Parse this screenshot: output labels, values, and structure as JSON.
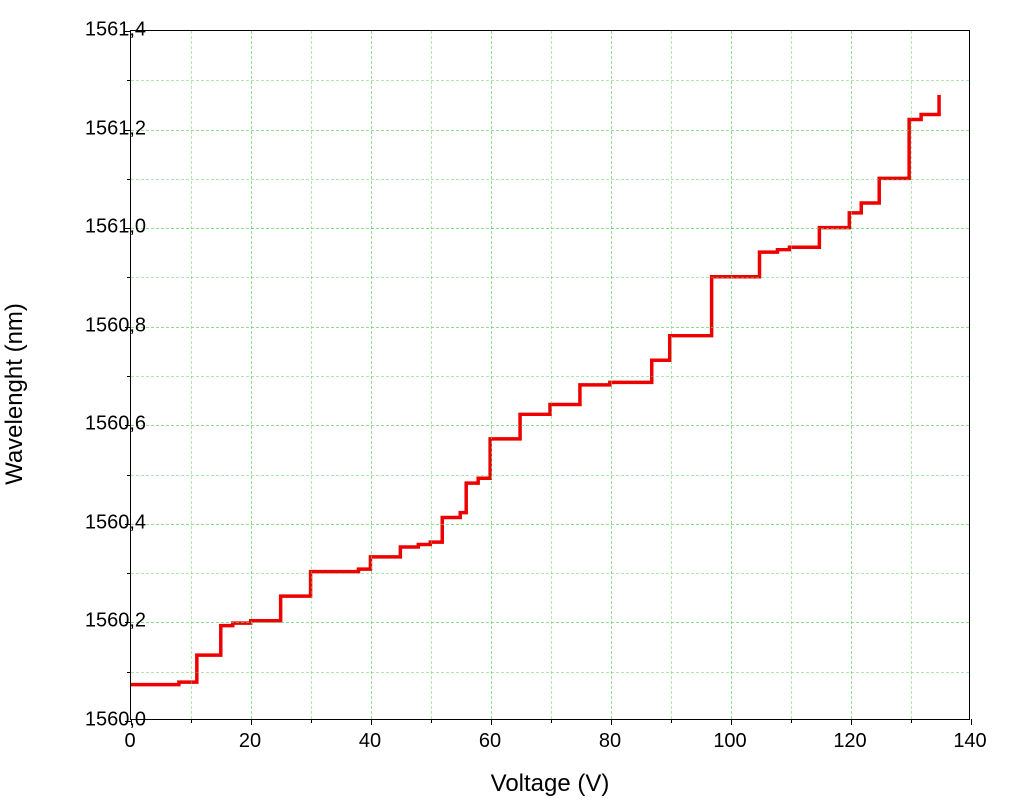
{
  "chart": {
    "type": "line",
    "xlabel": "Voltage (V)",
    "ylabel": "Wavelenght (nm)",
    "label_fontsize": 24,
    "tick_fontsize": 20,
    "background_color": "#ffffff",
    "border_color": "#000000",
    "grid_color": "#66cc66",
    "grid_dash": "4,3",
    "line_color": "#ee0000",
    "line_width": 3.5,
    "xlim": [
      0,
      140
    ],
    "ylim": [
      1560.0,
      1561.4
    ],
    "x_ticks": [
      0,
      20,
      40,
      60,
      80,
      100,
      120,
      140
    ],
    "y_ticks": [
      1560.0,
      1560.2,
      1560.4,
      1560.6,
      1560.8,
      1561.0,
      1561.2,
      1561.4
    ],
    "y_tick_labels": [
      "1560,0",
      "1560,2",
      "1560,4",
      "1560,6",
      "1560,8",
      "1561,0",
      "1561,2",
      "1561,4"
    ],
    "x_minor_step": 10,
    "y_minor_step": 0.1,
    "data": {
      "x": [
        0,
        5,
        8,
        10,
        11,
        13,
        15,
        17,
        20,
        25,
        27,
        30,
        35,
        38,
        40,
        45,
        48,
        50,
        52,
        55,
        56,
        58,
        60,
        62,
        65,
        67,
        70,
        75,
        78,
        80,
        85,
        87,
        90,
        92,
        95,
        97,
        100,
        105,
        108,
        110,
        115,
        118,
        120,
        122,
        125,
        128,
        130,
        132,
        135
      ],
      "y": [
        1560.07,
        1560.07,
        1560.075,
        1560.075,
        1560.13,
        1560.13,
        1560.19,
        1560.195,
        1560.2,
        1560.25,
        1560.25,
        1560.3,
        1560.3,
        1560.305,
        1560.33,
        1560.35,
        1560.355,
        1560.36,
        1560.41,
        1560.42,
        1560.48,
        1560.49,
        1560.57,
        1560.57,
        1560.62,
        1560.62,
        1560.64,
        1560.68,
        1560.68,
        1560.685,
        1560.685,
        1560.73,
        1560.78,
        1560.78,
        1560.78,
        1560.9,
        1560.9,
        1560.95,
        1560.955,
        1560.96,
        1561.0,
        1561.0,
        1561.03,
        1561.05,
        1561.1,
        1561.1,
        1561.22,
        1561.23,
        1561.27
      ]
    }
  }
}
